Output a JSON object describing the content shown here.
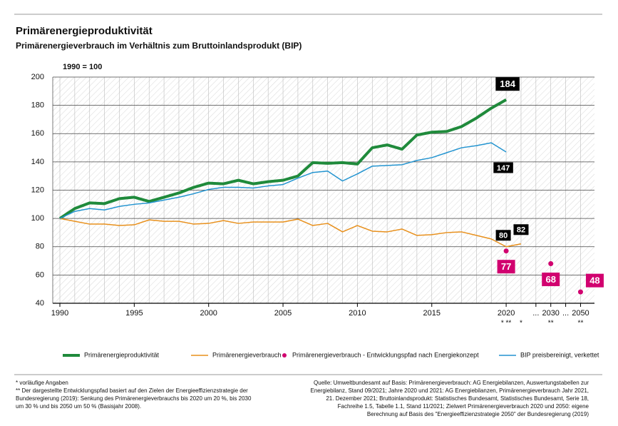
{
  "chart_data": {
    "type": "line",
    "title": "Primärenergieproduktivität",
    "subtitle": "Primärenergieverbrauch im Verhältnis zum Bruttoinlandsprodukt (BIP)",
    "y_label": "1990 = 100",
    "categories": [
      "1990",
      null,
      null,
      null,
      null,
      "1995",
      null,
      null,
      null,
      null,
      "2000",
      null,
      null,
      null,
      null,
      "2005",
      null,
      null,
      null,
      null,
      "2010",
      null,
      null,
      null,
      null,
      "2015",
      null,
      null,
      null,
      null,
      "2020",
      null,
      "...",
      "2030",
      "...",
      "2050"
    ],
    "category_notes": [
      null,
      null,
      null,
      null,
      null,
      null,
      null,
      null,
      null,
      null,
      null,
      null,
      null,
      null,
      null,
      null,
      null,
      null,
      null,
      null,
      null,
      null,
      null,
      null,
      null,
      null,
      null,
      null,
      null,
      null,
      "* **",
      "*",
      null,
      "**",
      null,
      "**"
    ],
    "ylim": [
      40,
      200
    ],
    "yticks": [
      40,
      60,
      80,
      100,
      120,
      140,
      160,
      180,
      200
    ],
    "grid": true,
    "series": [
      {
        "name": "Primärenergieproduktivität",
        "color": "#1f8a3b",
        "width": 4,
        "style": "line",
        "values": [
          100,
          107,
          111,
          110.5,
          114,
          115,
          112,
          115,
          118,
          122,
          125,
          124.5,
          127,
          124.5,
          126,
          127,
          130,
          139.5,
          139,
          139.5,
          138.5,
          150,
          152,
          149,
          159,
          161,
          161.5,
          165,
          171,
          178,
          184,
          null,
          null,
          null,
          null,
          null
        ],
        "value_labels": [
          null,
          null,
          null,
          null,
          null,
          null,
          null,
          null,
          null,
          null,
          null,
          null,
          null,
          null,
          null,
          null,
          null,
          null,
          null,
          null,
          null,
          null,
          null,
          null,
          null,
          null,
          null,
          null,
          null,
          null,
          "184",
          null,
          null,
          null,
          null,
          null
        ]
      },
      {
        "name": "Primärenergieverbrauch",
        "color": "#e8901c",
        "width": 1.5,
        "style": "line",
        "values": [
          100,
          98,
          96,
          96,
          95,
          95.5,
          99,
          98,
          98,
          96,
          96.5,
          98.5,
          96.5,
          97.5,
          97.5,
          97.5,
          99.5,
          95,
          96.5,
          90.5,
          95,
          91,
          90.5,
          92.5,
          88,
          88.5,
          90,
          90.5,
          88,
          85.5,
          80,
          82,
          null,
          null,
          null,
          null
        ],
        "value_labels": [
          null,
          null,
          null,
          null,
          null,
          null,
          null,
          null,
          null,
          null,
          null,
          null,
          null,
          null,
          null,
          null,
          null,
          null,
          null,
          null,
          null,
          null,
          null,
          null,
          null,
          null,
          null,
          null,
          null,
          null,
          "80",
          "82",
          null,
          null,
          null,
          null
        ]
      },
      {
        "name": "Primärenergieverbrauch - Entwicklungspfad nach Energiekonzept",
        "color": "#d1006f",
        "style": "dot",
        "values": [
          null,
          null,
          null,
          null,
          null,
          null,
          null,
          null,
          null,
          null,
          null,
          null,
          null,
          null,
          null,
          null,
          null,
          null,
          null,
          null,
          null,
          null,
          null,
          null,
          null,
          null,
          null,
          null,
          null,
          null,
          77,
          null,
          null,
          68,
          null,
          48
        ],
        "value_labels": [
          null,
          null,
          null,
          null,
          null,
          null,
          null,
          null,
          null,
          null,
          null,
          null,
          null,
          null,
          null,
          null,
          null,
          null,
          null,
          null,
          null,
          null,
          null,
          null,
          null,
          null,
          null,
          null,
          null,
          null,
          "77",
          null,
          null,
          "68",
          null,
          "48"
        ]
      },
      {
        "name": "BIP preisbereinigt, verkettet",
        "color": "#2394d0",
        "width": 1.5,
        "style": "line",
        "values": [
          100,
          105,
          107,
          106,
          108.5,
          110,
          111,
          113,
          115,
          117.5,
          120.5,
          122,
          122,
          121.5,
          123,
          124,
          128.5,
          132.5,
          133.5,
          126.5,
          131.5,
          137,
          137.5,
          138,
          141,
          143,
          146.5,
          150,
          151.5,
          153.5,
          147,
          null,
          null,
          null,
          null,
          null
        ],
        "value_labels": [
          null,
          null,
          null,
          null,
          null,
          null,
          null,
          null,
          null,
          null,
          null,
          null,
          null,
          null,
          null,
          null,
          null,
          null,
          null,
          null,
          null,
          null,
          null,
          null,
          null,
          null,
          null,
          null,
          null,
          null,
          "147",
          null,
          null,
          null,
          null,
          null
        ]
      }
    ],
    "footnotes": [
      "* vorläufige Angaben",
      "** Der dargestellte Entwicklungspfad basiert auf den Zielen der Energieeffizienzstrategie der",
      "Bundesregierung (2019): Senkung des Primärenergieverbrauchs bis 2020 um 20 %, bis 2030",
      "um 30 % und bis 2050 um 50 % (Basisjahr 2008)."
    ],
    "source": [
      "Quelle: Umweltbundesamt auf Basis: Primärenergieverbrauch: AG Energiebilanzen, Auswertungstabellen zur",
      "Energiebilanz, Stand 09/2021; Jahre 2020 und 2021: AG Energiebilanzen, Primärenergieverbrauch Jahr 2021,",
      "21. Dezember 2021; Bruttoinlandsprodukt: Statistisches Bundesamt, Statistisches Bundesamt, Serie 18,",
      "Fachreihe 1.5, Tabelle 1.1, Stand 11/2021; Zielwert Primärenergieverbrauch 2020 und 2050: eigene",
      "Berechnung auf Basis des \"Energieeffizienzstrategie 2050\" der Bundesregierung (2019)"
    ]
  }
}
